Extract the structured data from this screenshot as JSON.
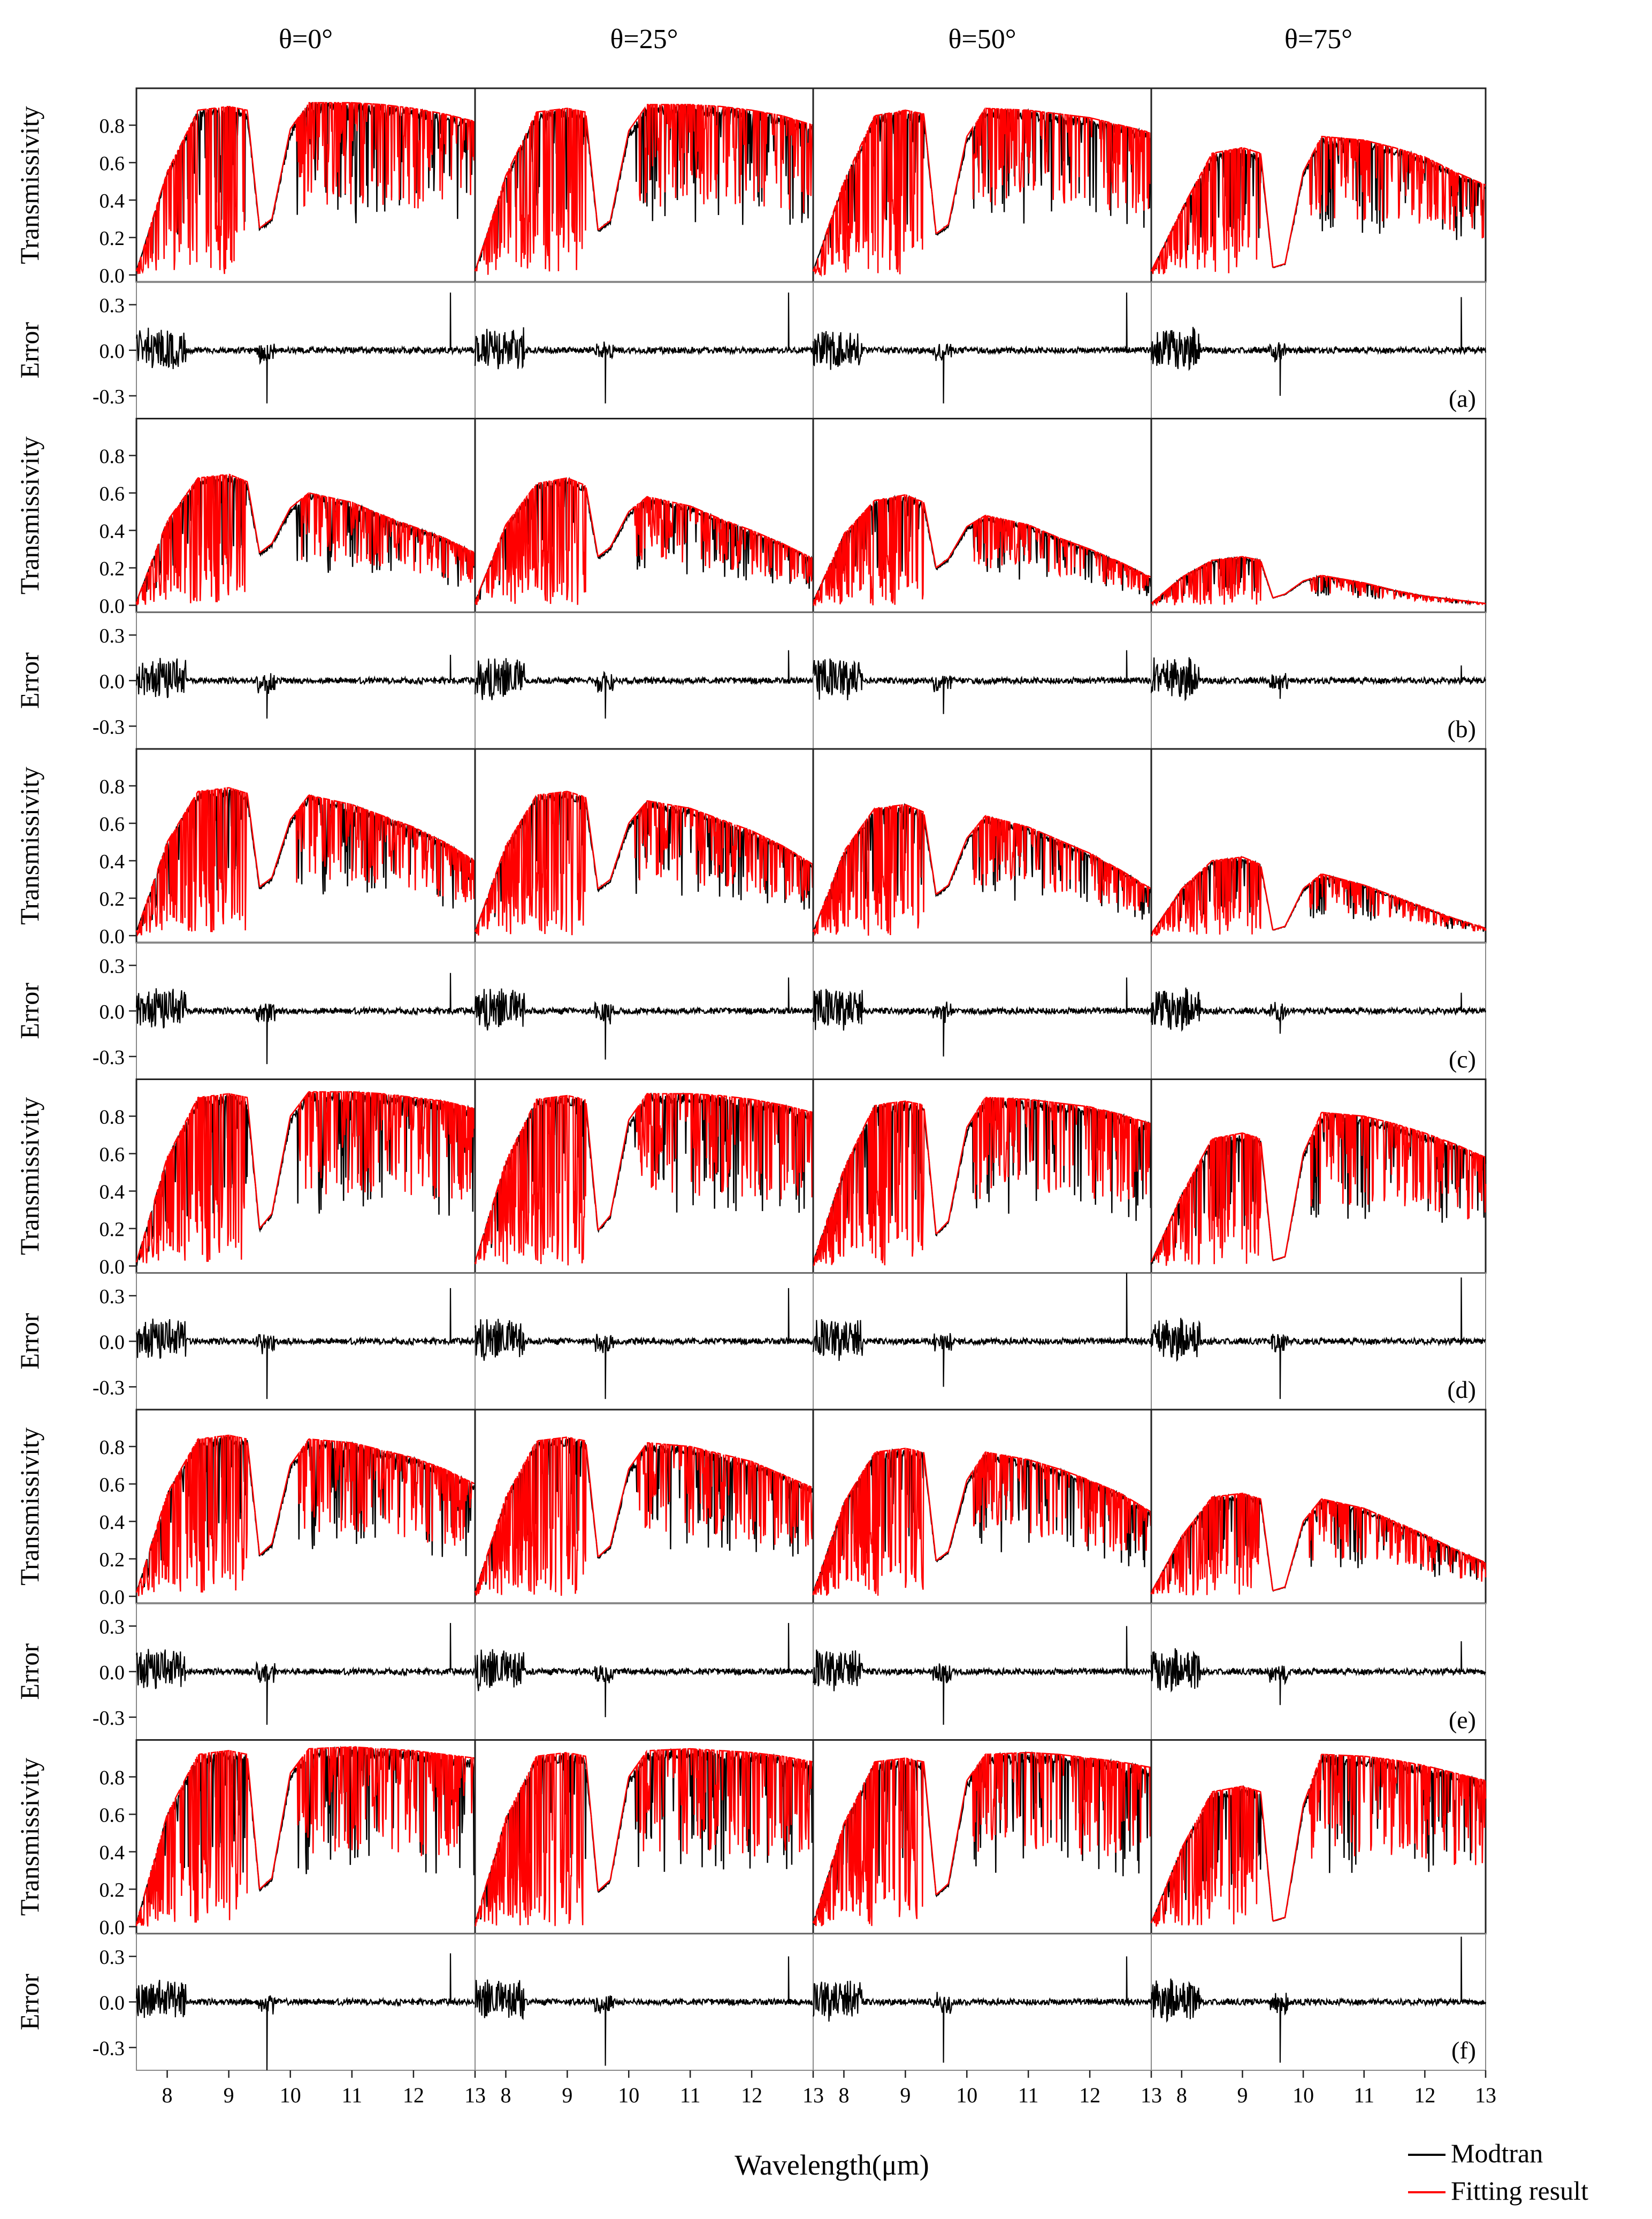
{
  "column_titles": [
    "θ=0°",
    "θ=25°",
    "θ=50°",
    "θ=75°"
  ],
  "row_labels": [
    "(a)",
    "(b)",
    "(c)",
    "(d)",
    "(e)",
    "(f)"
  ],
  "transmissivity_ylabel": "Transmissivity",
  "error_ylabel": "Error",
  "xlabel": "Wavelength(μm)",
  "trans_ticks": [
    "0.8",
    "0.6",
    "0.4",
    "0.2",
    "0.0"
  ],
  "error_ticks": [
    "0.3",
    "0.0",
    "-0.3"
  ],
  "x_ticks": [
    "8",
    "9",
    "10",
    "11",
    "12",
    "13"
  ],
  "legend": {
    "modtran": "Modtran",
    "fitting": "Fitting result"
  },
  "colors": {
    "modtran": "#000000",
    "fitting": "#ff0000"
  },
  "chart_data": {
    "type": "line",
    "xlabel": "Wavelength(μm)",
    "xlim": [
      7.5,
      13.0
    ],
    "trans_ylim": [
      -0.02,
      0.98
    ],
    "error_ylim": [
      -0.45,
      0.45
    ],
    "x": [
      7.5,
      8.0,
      8.5,
      9.0,
      9.3,
      9.5,
      9.7,
      10.0,
      10.3,
      11.0,
      11.5,
      12.0,
      12.5,
      13.0
    ],
    "panels": [
      {
        "row": "(a)",
        "column": "θ=0°",
        "transmissivity_envelope": [
          0.02,
          0.55,
          0.88,
          0.9,
          0.88,
          0.25,
          0.3,
          0.78,
          0.92,
          0.92,
          0.91,
          0.89,
          0.86,
          0.82
        ],
        "error_extremes": {
          "max": 0.38,
          "min": -0.35
        }
      },
      {
        "row": "(a)",
        "column": "θ=25°",
        "transmissivity_envelope": [
          0.02,
          0.53,
          0.87,
          0.89,
          0.87,
          0.24,
          0.29,
          0.77,
          0.91,
          0.91,
          0.9,
          0.88,
          0.85,
          0.8
        ],
        "error_extremes": {
          "max": 0.38,
          "min": -0.35
        }
      },
      {
        "row": "(a)",
        "column": "θ=50°",
        "transmissivity_envelope": [
          0.02,
          0.5,
          0.85,
          0.88,
          0.86,
          0.22,
          0.27,
          0.74,
          0.89,
          0.88,
          0.86,
          0.84,
          0.8,
          0.76
        ],
        "error_extremes": {
          "max": 0.38,
          "min": -0.35
        }
      },
      {
        "row": "(a)",
        "column": "θ=75°",
        "transmissivity_envelope": [
          0.02,
          0.35,
          0.65,
          0.68,
          0.65,
          0.04,
          0.06,
          0.55,
          0.74,
          0.72,
          0.68,
          0.63,
          0.55,
          0.48
        ],
        "error_extremes": {
          "max": 0.35,
          "min": -0.3
        }
      },
      {
        "row": "(b)",
        "column": "θ=0°",
        "transmissivity_envelope": [
          0.02,
          0.45,
          0.68,
          0.7,
          0.66,
          0.28,
          0.33,
          0.52,
          0.6,
          0.55,
          0.48,
          0.42,
          0.36,
          0.28
        ],
        "error_extremes": {
          "max": 0.17,
          "min": -0.25
        }
      },
      {
        "row": "(b)",
        "column": "θ=25°",
        "transmissivity_envelope": [
          0.02,
          0.43,
          0.65,
          0.68,
          0.64,
          0.26,
          0.31,
          0.5,
          0.58,
          0.53,
          0.46,
          0.4,
          0.33,
          0.25
        ],
        "error_extremes": {
          "max": 0.2,
          "min": -0.25
        }
      },
      {
        "row": "(b)",
        "column": "θ=50°",
        "transmissivity_envelope": [
          0.02,
          0.38,
          0.56,
          0.59,
          0.55,
          0.2,
          0.25,
          0.42,
          0.48,
          0.43,
          0.36,
          0.3,
          0.23,
          0.15
        ],
        "error_extremes": {
          "max": 0.2,
          "min": -0.22
        }
      },
      {
        "row": "(b)",
        "column": "θ=75°",
        "transmissivity_envelope": [
          0.01,
          0.15,
          0.24,
          0.26,
          0.24,
          0.04,
          0.06,
          0.13,
          0.16,
          0.12,
          0.08,
          0.05,
          0.03,
          0.01
        ],
        "error_extremes": {
          "max": 0.1,
          "min": -0.12
        }
      },
      {
        "row": "(c)",
        "column": "θ=0°",
        "transmissivity_envelope": [
          0.02,
          0.5,
          0.77,
          0.79,
          0.76,
          0.26,
          0.31,
          0.62,
          0.75,
          0.7,
          0.64,
          0.58,
          0.5,
          0.4
        ],
        "error_extremes": {
          "max": 0.25,
          "min": -0.35
        }
      },
      {
        "row": "(c)",
        "column": "θ=25°",
        "transmissivity_envelope": [
          0.02,
          0.48,
          0.75,
          0.77,
          0.74,
          0.25,
          0.3,
          0.6,
          0.72,
          0.68,
          0.62,
          0.56,
          0.48,
          0.38
        ],
        "error_extremes": {
          "max": 0.22,
          "min": -0.32
        }
      },
      {
        "row": "(c)",
        "column": "θ=50°",
        "transmissivity_envelope": [
          0.02,
          0.45,
          0.68,
          0.7,
          0.66,
          0.22,
          0.27,
          0.52,
          0.64,
          0.58,
          0.51,
          0.44,
          0.35,
          0.25
        ],
        "error_extremes": {
          "max": 0.22,
          "min": -0.3
        }
      },
      {
        "row": "(c)",
        "column": "θ=75°",
        "transmissivity_envelope": [
          0.01,
          0.25,
          0.4,
          0.42,
          0.38,
          0.03,
          0.05,
          0.25,
          0.33,
          0.27,
          0.21,
          0.15,
          0.09,
          0.04
        ],
        "error_extremes": {
          "max": 0.12,
          "min": -0.15
        }
      },
      {
        "row": "(d)",
        "column": "θ=0°",
        "transmissivity_envelope": [
          0.02,
          0.58,
          0.9,
          0.92,
          0.9,
          0.2,
          0.28,
          0.8,
          0.93,
          0.93,
          0.92,
          0.9,
          0.88,
          0.84
        ],
        "error_extremes": {
          "max": 0.35,
          "min": -0.38
        }
      },
      {
        "row": "(d)",
        "column": "θ=25°",
        "transmissivity_envelope": [
          0.02,
          0.56,
          0.89,
          0.91,
          0.89,
          0.19,
          0.27,
          0.78,
          0.92,
          0.92,
          0.91,
          0.89,
          0.86,
          0.82
        ],
        "error_extremes": {
          "max": 0.35,
          "min": -0.38
        }
      },
      {
        "row": "(d)",
        "column": "θ=50°",
        "transmissivity_envelope": [
          0.02,
          0.52,
          0.86,
          0.88,
          0.86,
          0.17,
          0.24,
          0.74,
          0.9,
          0.89,
          0.87,
          0.85,
          0.81,
          0.76
        ],
        "error_extremes": {
          "max": 0.45,
          "min": -0.3
        }
      },
      {
        "row": "(d)",
        "column": "θ=75°",
        "transmissivity_envelope": [
          0.02,
          0.38,
          0.68,
          0.71,
          0.68,
          0.03,
          0.05,
          0.6,
          0.82,
          0.8,
          0.76,
          0.71,
          0.65,
          0.58
        ],
        "error_extremes": {
          "max": 0.42,
          "min": -0.38
        }
      },
      {
        "row": "(e)",
        "column": "θ=0°",
        "transmissivity_envelope": [
          0.02,
          0.55,
          0.84,
          0.86,
          0.84,
          0.22,
          0.28,
          0.7,
          0.84,
          0.82,
          0.78,
          0.74,
          0.68,
          0.6
        ],
        "error_extremes": {
          "max": 0.32,
          "min": -0.35
        }
      },
      {
        "row": "(e)",
        "column": "θ=25°",
        "transmissivity_envelope": [
          0.02,
          0.53,
          0.83,
          0.85,
          0.83,
          0.21,
          0.27,
          0.68,
          0.82,
          0.8,
          0.76,
          0.72,
          0.65,
          0.58
        ],
        "error_extremes": {
          "max": 0.32,
          "min": -0.3
        }
      },
      {
        "row": "(e)",
        "column": "θ=50°",
        "transmissivity_envelope": [
          0.02,
          0.5,
          0.77,
          0.79,
          0.77,
          0.19,
          0.24,
          0.62,
          0.77,
          0.73,
          0.68,
          0.62,
          0.55,
          0.45
        ],
        "error_extremes": {
          "max": 0.3,
          "min": -0.35
        }
      },
      {
        "row": "(e)",
        "column": "θ=75°",
        "transmissivity_envelope": [
          0.02,
          0.32,
          0.53,
          0.55,
          0.52,
          0.03,
          0.05,
          0.4,
          0.52,
          0.47,
          0.4,
          0.33,
          0.25,
          0.18
        ],
        "error_extremes": {
          "max": 0.2,
          "min": -0.22
        }
      },
      {
        "row": "(f)",
        "column": "θ=0°",
        "transmissivity_envelope": [
          0.02,
          0.6,
          0.92,
          0.94,
          0.92,
          0.2,
          0.26,
          0.82,
          0.95,
          0.96,
          0.95,
          0.94,
          0.92,
          0.9
        ],
        "error_extremes": {
          "max": 0.32,
          "min": -0.45
        }
      },
      {
        "row": "(f)",
        "column": "θ=25°",
        "transmissivity_envelope": [
          0.02,
          0.58,
          0.91,
          0.93,
          0.91,
          0.19,
          0.25,
          0.8,
          0.94,
          0.95,
          0.94,
          0.93,
          0.91,
          0.88
        ],
        "error_extremes": {
          "max": 0.3,
          "min": -0.42
        }
      },
      {
        "row": "(f)",
        "column": "θ=50°",
        "transmissivity_envelope": [
          0.02,
          0.55,
          0.88,
          0.9,
          0.88,
          0.17,
          0.23,
          0.78,
          0.92,
          0.93,
          0.92,
          0.9,
          0.88,
          0.85
        ],
        "error_extremes": {
          "max": 0.3,
          "min": -0.4
        }
      },
      {
        "row": "(f)",
        "column": "θ=75°",
        "transmissivity_envelope": [
          0.02,
          0.42,
          0.72,
          0.75,
          0.72,
          0.03,
          0.05,
          0.65,
          0.92,
          0.91,
          0.89,
          0.86,
          0.82,
          0.78
        ],
        "error_extremes": {
          "max": 0.43,
          "min": -0.4
        }
      }
    ]
  }
}
